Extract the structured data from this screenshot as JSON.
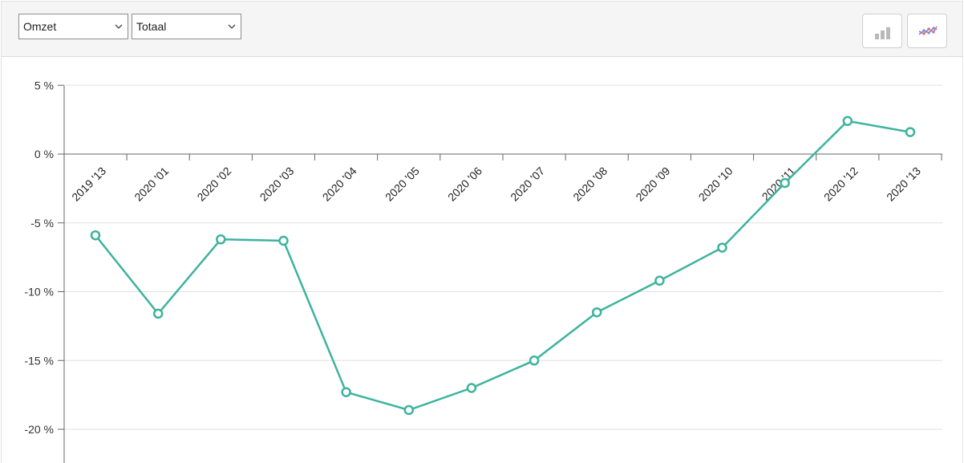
{
  "toolbar": {
    "metric_select": {
      "value": "Omzet"
    },
    "scope_select": {
      "value": "Totaal"
    },
    "buttons": [
      {
        "name": "bar-chart-button",
        "icon": "bar-chart-icon"
      },
      {
        "name": "line-chart-button",
        "icon": "line-chart-icon"
      }
    ]
  },
  "colors": {
    "series": "#3db39e",
    "grid": "#e1e1e1",
    "axis": "#666666",
    "toolbar_bg": "#f5f5f5"
  },
  "chart_data": {
    "type": "line",
    "title": "",
    "xlabel": "",
    "ylabel": "",
    "categories": [
      "2019 '13",
      "2020 '01",
      "2020 '02",
      "2020 '03",
      "2020 '04",
      "2020 '05",
      "2020 '06",
      "2020 '07",
      "2020 '08",
      "2020 '09",
      "2020 '10",
      "2020 '11",
      "2020 '12",
      "2020 '13"
    ],
    "series": [
      {
        "values": [
          -5.9,
          -11.6,
          -6.2,
          -6.3,
          -17.3,
          -18.6,
          -17.0,
          -15.0,
          -11.5,
          -9.2,
          -6.8,
          -2.1,
          2.4,
          1.6
        ]
      }
    ],
    "yticks": [
      5,
      0,
      -5,
      -10,
      -15,
      -20
    ],
    "ytick_labels": [
      "5 %",
      "0 %",
      "-5 %",
      "-10 %",
      "-15 %",
      "-20 %"
    ],
    "ylim": [
      -22.3,
      5
    ],
    "grid": true,
    "legend": "none"
  }
}
